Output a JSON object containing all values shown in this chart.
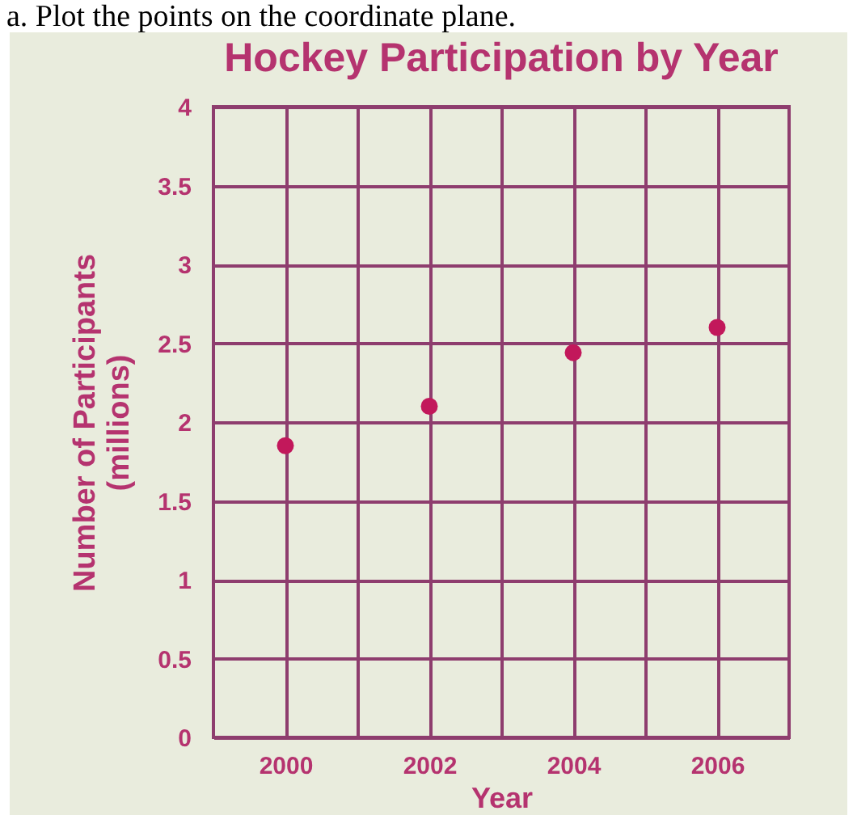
{
  "chart_data": {
    "type": "scatter",
    "title": "Hockey Participation by Year",
    "xlabel": "Year",
    "ylabel": "Number of Participants\n(millions)",
    "annotations": [
      "a. Plot the points on the coordinate plane."
    ],
    "x": [
      2000,
      2002,
      2004,
      2006
    ],
    "series": [
      {
        "color": "#c2185b",
        "values": [
          1.85,
          2.1,
          2.44,
          2.6
        ]
      }
    ],
    "xlim": [
      1999,
      2007
    ],
    "xticks": [
      2000,
      {
        "value": 2001,
        "label": null
      },
      2002,
      {
        "value": 2003,
        "label": null
      },
      2004,
      {
        "value": 2005,
        "label": null
      },
      2006
    ],
    "ylim": [
      0,
      4
    ],
    "yticks": [
      0,
      0.5,
      1,
      1.5,
      2,
      2.5,
      3,
      3.5,
      4
    ],
    "grid": true,
    "marker": "circle"
  }
}
